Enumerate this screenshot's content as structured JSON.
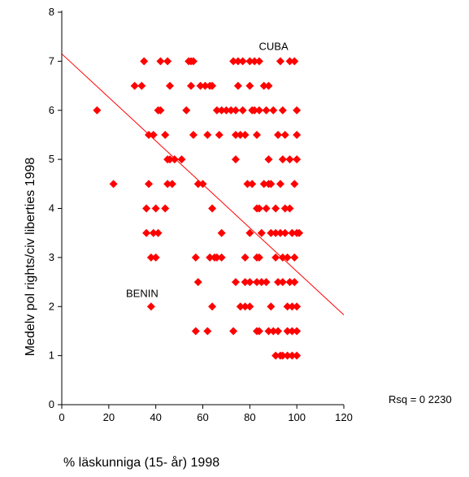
{
  "chart_data": {
    "type": "scatter",
    "title": "",
    "xlabel": "% läskunniga (15- år) 1998",
    "ylabel": "Medelv pol rights/civ liberties 1998",
    "xlim": [
      0,
      120
    ],
    "ylim": [
      0,
      8
    ],
    "xticks": [
      0,
      20,
      40,
      60,
      80,
      100,
      120
    ],
    "yticks": [
      0,
      1,
      2,
      3,
      4,
      5,
      6,
      7,
      8
    ],
    "grid": false,
    "marker_color": "#ff0000",
    "line_color": "#ff0000",
    "regression_line": {
      "x": [
        0,
        120
      ],
      "y": [
        7.15,
        1.83
      ]
    },
    "rsq_text": "Rsq = 0 2230",
    "annotations": [
      {
        "text": "CUBA",
        "x": 96,
        "y": 7
      },
      {
        "text": "BENIN",
        "x": 38,
        "y": 2
      }
    ],
    "points": [
      [
        15,
        6
      ],
      [
        22,
        4.5
      ],
      [
        31,
        6.5
      ],
      [
        34,
        6.5
      ],
      [
        35,
        7
      ],
      [
        36,
        4
      ],
      [
        36,
        3.5
      ],
      [
        37,
        4.5
      ],
      [
        37,
        5.5
      ],
      [
        38,
        2
      ],
      [
        38,
        3
      ],
      [
        39,
        5.5
      ],
      [
        40,
        3
      ],
      [
        39,
        3.5
      ],
      [
        40,
        4
      ],
      [
        41,
        3.5
      ],
      [
        41,
        6
      ],
      [
        42,
        6
      ],
      [
        42,
        7
      ],
      [
        44,
        5.5
      ],
      [
        44,
        4
      ],
      [
        45,
        5
      ],
      [
        45,
        4.5
      ],
      [
        45,
        7
      ],
      [
        46,
        6.5
      ],
      [
        46,
        5
      ],
      [
        47,
        4.5
      ],
      [
        48,
        5
      ],
      [
        51,
        5
      ],
      [
        53,
        6
      ],
      [
        54,
        7
      ],
      [
        55,
        7
      ],
      [
        56,
        5.5
      ],
      [
        56,
        7
      ],
      [
        57,
        3
      ],
      [
        55,
        6.5
      ],
      [
        57,
        1.5
      ],
      [
        58,
        4.5
      ],
      [
        58,
        2.5
      ],
      [
        59,
        6.5
      ],
      [
        60,
        4.5
      ],
      [
        61,
        6.5
      ],
      [
        62,
        1.5
      ],
      [
        62,
        5.5
      ],
      [
        63,
        6.5
      ],
      [
        63,
        3
      ],
      [
        64,
        2
      ],
      [
        64,
        4
      ],
      [
        64,
        6.5
      ],
      [
        65,
        3
      ],
      [
        66,
        6
      ],
      [
        66,
        3
      ],
      [
        67,
        5.5
      ],
      [
        68,
        6
      ],
      [
        68,
        3
      ],
      [
        68,
        3.5
      ],
      [
        70,
        6
      ],
      [
        72,
        6
      ],
      [
        73,
        1.5
      ],
      [
        73,
        7
      ],
      [
        74,
        2.5
      ],
      [
        74,
        6
      ],
      [
        74,
        5
      ],
      [
        74,
        5.5
      ],
      [
        75,
        6.5
      ],
      [
        75,
        7
      ],
      [
        76,
        2
      ],
      [
        76,
        5.5
      ],
      [
        77,
        6
      ],
      [
        77,
        7
      ],
      [
        78,
        3
      ],
      [
        78,
        2.5
      ],
      [
        78,
        5.5
      ],
      [
        78,
        2
      ],
      [
        79,
        4.5
      ],
      [
        80,
        6.5
      ],
      [
        80,
        7
      ],
      [
        80,
        3.5
      ],
      [
        80,
        2.5
      ],
      [
        80,
        2
      ],
      [
        81,
        4.5
      ],
      [
        81,
        6
      ],
      [
        82,
        6
      ],
      [
        82,
        7
      ],
      [
        83,
        4
      ],
      [
        83,
        1.5
      ],
      [
        83,
        3
      ],
      [
        83,
        5.5
      ],
      [
        83,
        2.5
      ],
      [
        84,
        1.5
      ],
      [
        84,
        4
      ],
      [
        84,
        6
      ],
      [
        84,
        7
      ],
      [
        84,
        3
      ],
      [
        85,
        3.5
      ],
      [
        85,
        2.5
      ],
      [
        86,
        4.5
      ],
      [
        86,
        6.5
      ],
      [
        87,
        4
      ],
      [
        87,
        6
      ],
      [
        87,
        2.5
      ],
      [
        88,
        5
      ],
      [
        88,
        1.5
      ],
      [
        88,
        6.5
      ],
      [
        88,
        4.5
      ],
      [
        89,
        4.5
      ],
      [
        89,
        3.5
      ],
      [
        89,
        2
      ],
      [
        90,
        6
      ],
      [
        90,
        1.5
      ],
      [
        91,
        3.5
      ],
      [
        91,
        3
      ],
      [
        91,
        4
      ],
      [
        91,
        1
      ],
      [
        92,
        2.5
      ],
      [
        92,
        5.5
      ],
      [
        92,
        1.5
      ],
      [
        93,
        4.5
      ],
      [
        93,
        3.5
      ],
      [
        93,
        7
      ],
      [
        93,
        1
      ],
      [
        94,
        3
      ],
      [
        94,
        5
      ],
      [
        94,
        6
      ],
      [
        94,
        1
      ],
      [
        94,
        2.5
      ],
      [
        95,
        4
      ],
      [
        95,
        3.5
      ],
      [
        95,
        5.5
      ],
      [
        96,
        2
      ],
      [
        96,
        1.5
      ],
      [
        96,
        3
      ],
      [
        96,
        1
      ],
      [
        97,
        7
      ],
      [
        97,
        5
      ],
      [
        97,
        2.5
      ],
      [
        97,
        4
      ],
      [
        98,
        1.5
      ],
      [
        98,
        3.5
      ],
      [
        98,
        2
      ],
      [
        98,
        1
      ],
      [
        99,
        4.5
      ],
      [
        99,
        7
      ],
      [
        99,
        3
      ],
      [
        99,
        2.5
      ],
      [
        100,
        5.5
      ],
      [
        100,
        3.5
      ],
      [
        100,
        1
      ],
      [
        100,
        2
      ],
      [
        100,
        1.5
      ],
      [
        100,
        5
      ],
      [
        100,
        6
      ],
      [
        101,
        3.5
      ]
    ]
  }
}
